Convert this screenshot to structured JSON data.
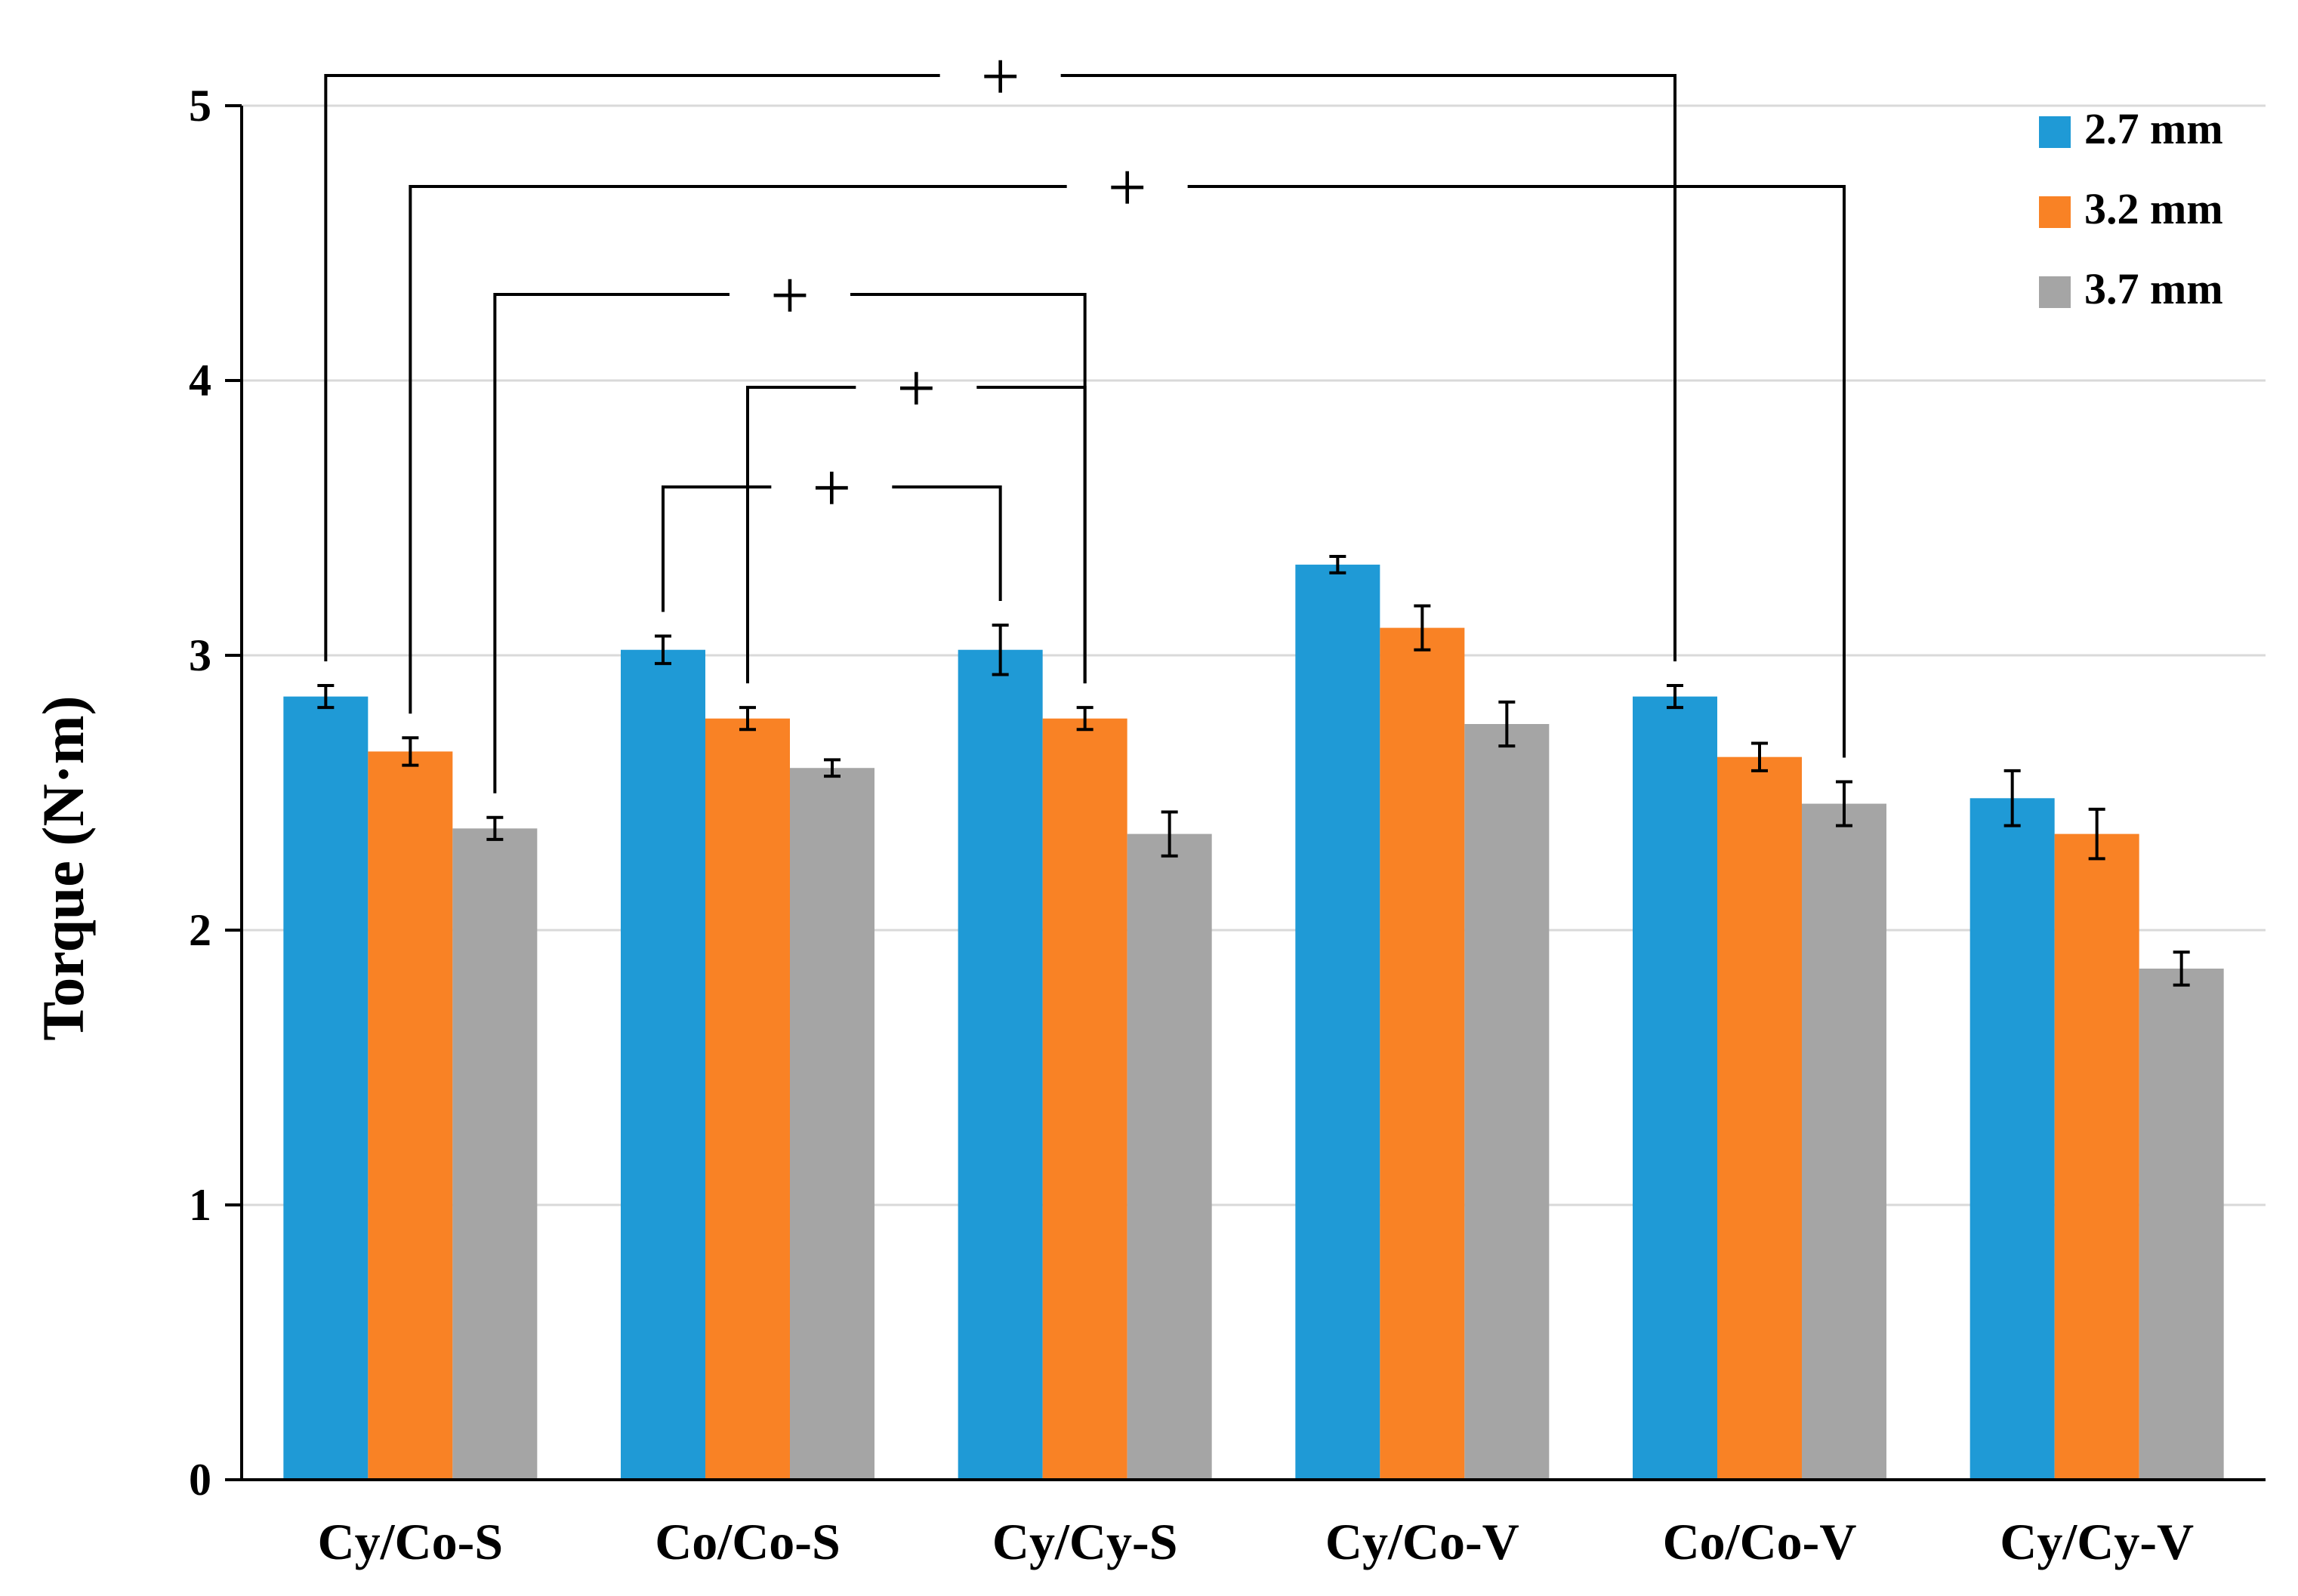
{
  "chart_data": {
    "type": "bar",
    "title": "",
    "xlabel": "",
    "ylabel": "Torque (N·m)",
    "ylim": [
      0,
      5
    ],
    "yticks": [
      "0",
      "1",
      "2",
      "3",
      "4",
      "5"
    ],
    "grid": true,
    "legend_position": "top-right",
    "categories": [
      "Cy/Co-S",
      "Co/Co-S",
      "Cy/Cy-S",
      "Cy/Co-V",
      "Co/Co-V",
      "Cy/Cy-V"
    ],
    "series": [
      {
        "name": "2.7 mm",
        "color": "#1f9ad6",
        "values": [
          2.85,
          3.02,
          3.02,
          3.33,
          2.85,
          2.48
        ],
        "errors": [
          0.04,
          0.05,
          0.09,
          0.03,
          0.04,
          0.1
        ]
      },
      {
        "name": "3.2 mm",
        "color": "#f98225",
        "values": [
          2.65,
          2.77,
          2.77,
          3.1,
          2.63,
          2.35
        ],
        "errors": [
          0.05,
          0.04,
          0.04,
          0.08,
          0.05,
          0.09
        ]
      },
      {
        "name": "3.7 mm",
        "color": "#a5a5a5",
        "values": [
          2.37,
          2.59,
          2.35,
          2.75,
          2.46,
          1.86
        ],
        "errors": [
          0.04,
          0.03,
          0.08,
          0.08,
          0.08,
          0.06
        ]
      }
    ],
    "significance": [
      {
        "mark": "+",
        "from": [
          0,
          0
        ],
        "to": [
          4,
          0
        ]
      },
      {
        "mark": "+",
        "from": [
          0,
          1
        ],
        "to": [
          4,
          2
        ]
      },
      {
        "mark": "+",
        "from": [
          0,
          2
        ],
        "to": [
          2,
          1
        ]
      },
      {
        "mark": "+",
        "from": [
          1,
          1
        ],
        "to": [
          2,
          1
        ]
      },
      {
        "mark": "+",
        "from": [
          1,
          0
        ],
        "to": [
          2,
          0
        ]
      }
    ]
  }
}
